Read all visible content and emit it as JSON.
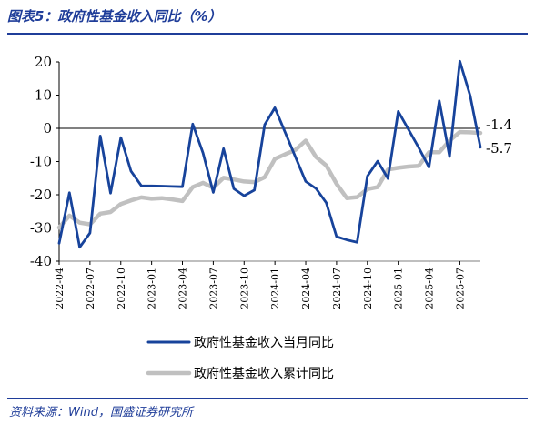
{
  "header": {
    "title": "图表5：政府性基金收入同比（%）"
  },
  "footer": {
    "source": "资料来源：Wind，国盛证券研究所"
  },
  "colors": {
    "series_monthly": "#17439b",
    "series_cumulative": "#c0c0c0",
    "accent": "#1f3d99"
  },
  "chart_data": {
    "type": "line",
    "title": "政府性基金收入同比（%）",
    "xlabel": "",
    "ylabel": "",
    "ylim": [
      -40,
      20
    ],
    "yticks": [
      20,
      10,
      0,
      -10,
      -20,
      -30,
      -40
    ],
    "grid": false,
    "legend_position": "bottom",
    "x_tick_labels": [
      "2022-04",
      "2022-07",
      "2022-10",
      "2023-01",
      "2023-04",
      "2023-07",
      "2023-10",
      "2024-01",
      "2024-04",
      "2024-07",
      "2024-10",
      "2025-01",
      "2025-04",
      "2025-07"
    ],
    "x": [
      "2022-04",
      "2022-05",
      "2022-06",
      "2022-07",
      "2022-08",
      "2022-09",
      "2022-10",
      "2022-11",
      "2022-12",
      "2023-01",
      "2023-02",
      "2023-03",
      "2023-04",
      "2023-05",
      "2023-06",
      "2023-07",
      "2023-08",
      "2023-09",
      "2023-10",
      "2023-11",
      "2023-12",
      "2024-01",
      "2024-02",
      "2024-03",
      "2024-04",
      "2024-05",
      "2024-06",
      "2024-07",
      "2024-08",
      "2024-09",
      "2024-10",
      "2024-11",
      "2024-12",
      "2025-01",
      "2025-02",
      "2025-03",
      "2025-04",
      "2025-05",
      "2025-06",
      "2025-07",
      "2025-08",
      "2025-09"
    ],
    "series": [
      {
        "name": "政府性基金收入当月同比",
        "values": [
          -34.6,
          -19.4,
          -35.8,
          -31.5,
          -2.3,
          -19.5,
          -2.8,
          -12.9,
          -17.3,
          null,
          -17.4,
          null,
          -17.6,
          1.3,
          -7.4,
          -19.3,
          -6.1,
          -18.2,
          -20.3,
          -18.6,
          1.1,
          6.2,
          null,
          null,
          -16.0,
          -18.1,
          -22.4,
          -32.6,
          -33.6,
          -34.3,
          -14.4,
          -9.9,
          -15.1,
          5.1,
          null,
          -5.8,
          -11.7,
          8.3,
          -8.5,
          20.2,
          9.9,
          -5.7
        ]
      },
      {
        "name": "政府性基金收入累计同比",
        "values": [
          -29.9,
          -26.3,
          -28.4,
          -28.9,
          -25.7,
          -25.2,
          -22.8,
          -21.7,
          -20.8,
          -21.2,
          -21.0,
          -21.4,
          -21.9,
          -17.7,
          -16.4,
          -17.9,
          -14.9,
          -15.4,
          -16.0,
          -16.2,
          -14.7,
          -9.2,
          -7.8,
          -6.5,
          -3.7,
          -8.6,
          -11.2,
          -16.7,
          -21.0,
          -20.7,
          -18.3,
          -17.7,
          -12.4,
          -11.9,
          -11.5,
          -11.3,
          -7.2,
          -7.2,
          -3.7,
          -1.1,
          -1.2,
          -1.4
        ]
      }
    ],
    "end_labels": [
      "-1.4",
      "-5.7"
    ]
  }
}
